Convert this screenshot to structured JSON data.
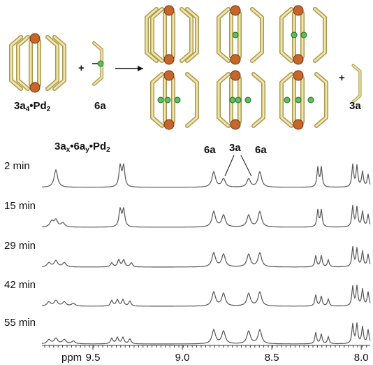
{
  "schematic": {
    "reactant_label": [
      "3a",
      "4",
      "•Pd",
      "2"
    ],
    "ligand_label": "6a",
    "plus_1": "+",
    "plus_2": "+",
    "product_label": "3a"
  },
  "spectra": {
    "title": [
      "3a",
      "x",
      "•6a",
      "y",
      "•Pd",
      "2"
    ],
    "annotations": [
      "6a",
      "3a",
      "6a"
    ],
    "times": [
      "2 min",
      "15 min",
      "29 min",
      "42 min",
      "55 min"
    ],
    "x_axis": {
      "unit": "ppm",
      "xlim": [
        9.785,
        7.95
      ],
      "xticks": [
        9.5,
        {
          "value": 9,
          "label": "9.0"
        },
        8.5,
        {
          "value": 8,
          "label": "8.0"
        }
      ]
    }
  }
}
